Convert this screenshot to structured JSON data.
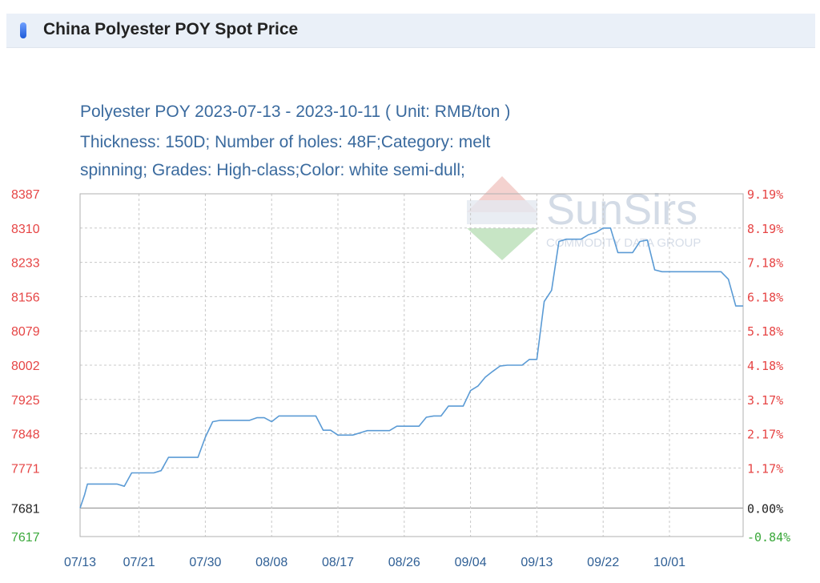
{
  "header": {
    "title": "China Polyester POY Spot Price"
  },
  "description": {
    "line1": "Polyester POY 2023-07-13 - 2023-10-11     ( Unit: RMB/ton )",
    "line2": "Thickness: 150D; Number of holes: 48F;Category: melt",
    "line3": "spinning; Grades: High-class;Color: white semi-dull;"
  },
  "watermark": {
    "brand": "SunSirs",
    "sub": "COMMODITY DATA GROUP"
  },
  "colors": {
    "line": "#5b9bd5",
    "positive": "#e64545",
    "negative": "#3aa83a",
    "base": "#222222",
    "grid": "#c8c8c8"
  },
  "chart_data": {
    "type": "line",
    "title": "Polyester POY 2023-07-13 - 2023-10-11",
    "unit": "RMB/ton",
    "base_value": 7681,
    "ylim": [
      7617,
      8387
    ],
    "y_ticks_left": [
      "8387",
      "8310",
      "8233",
      "8156",
      "8079",
      "8002",
      "7925",
      "7848",
      "7771",
      "7681",
      "7617"
    ],
    "y_tick_values": [
      8387,
      8310,
      8233,
      8156,
      8079,
      8002,
      7925,
      7848,
      7771,
      7681,
      7617
    ],
    "y_ticks_right": [
      "9.19%",
      "8.19%",
      "7.18%",
      "6.18%",
      "5.18%",
      "4.18%",
      "3.17%",
      "2.17%",
      "1.17%",
      "0.00%",
      "-0.84%"
    ],
    "x_ticks": [
      "07/13",
      "07/21",
      "07/30",
      "08/08",
      "08/17",
      "08/26",
      "09/04",
      "09/13",
      "09/22",
      "10/01"
    ],
    "x_tick_days": [
      0,
      8,
      17,
      26,
      35,
      44,
      53,
      62,
      71,
      80
    ],
    "x_range_days": [
      0,
      90
    ],
    "series": [
      {
        "points": [
          [
            0,
            7681
          ],
          [
            0.6,
            7710
          ],
          [
            1,
            7735
          ],
          [
            2,
            7735
          ],
          [
            3,
            7735
          ],
          [
            4,
            7735
          ],
          [
            5,
            7735
          ],
          [
            6,
            7730
          ],
          [
            7,
            7760
          ],
          [
            8,
            7760
          ],
          [
            9,
            7760
          ],
          [
            10,
            7760
          ],
          [
            11,
            7765
          ],
          [
            12,
            7795
          ],
          [
            13,
            7795
          ],
          [
            14,
            7795
          ],
          [
            15,
            7795
          ],
          [
            16,
            7795
          ],
          [
            17,
            7840
          ],
          [
            18,
            7875
          ],
          [
            19,
            7878
          ],
          [
            20,
            7878
          ],
          [
            21,
            7878
          ],
          [
            22,
            7878
          ],
          [
            23,
            7878
          ],
          [
            24,
            7884
          ],
          [
            25,
            7884
          ],
          [
            26,
            7875
          ],
          [
            27,
            7888
          ],
          [
            28,
            7888
          ],
          [
            29,
            7888
          ],
          [
            30,
            7888
          ],
          [
            31,
            7888
          ],
          [
            32,
            7888
          ],
          [
            33,
            7856
          ],
          [
            34,
            7856
          ],
          [
            35,
            7845
          ],
          [
            36,
            7845
          ],
          [
            37,
            7845
          ],
          [
            38,
            7850
          ],
          [
            39,
            7855
          ],
          [
            40,
            7855
          ],
          [
            41,
            7855
          ],
          [
            42,
            7855
          ],
          [
            43,
            7865
          ],
          [
            44,
            7865
          ],
          [
            45,
            7865
          ],
          [
            46,
            7865
          ],
          [
            47,
            7885
          ],
          [
            48,
            7888
          ],
          [
            49,
            7888
          ],
          [
            50,
            7910
          ],
          [
            51,
            7910
          ],
          [
            52,
            7910
          ],
          [
            53,
            7945
          ],
          [
            54,
            7955
          ],
          [
            55,
            7975
          ],
          [
            56,
            7988
          ],
          [
            57,
            8000
          ],
          [
            58,
            8002
          ],
          [
            59,
            8002
          ],
          [
            60,
            8002
          ],
          [
            61,
            8015
          ],
          [
            62,
            8015
          ],
          [
            63,
            8145
          ],
          [
            64,
            8170
          ],
          [
            65,
            8280
          ],
          [
            66,
            8285
          ],
          [
            67,
            8285
          ],
          [
            68,
            8285
          ],
          [
            69,
            8295
          ],
          [
            70,
            8300
          ],
          [
            71,
            8310
          ],
          [
            72,
            8310
          ],
          [
            73,
            8255
          ],
          [
            74,
            8255
          ],
          [
            75,
            8255
          ],
          [
            76,
            8280
          ],
          [
            77,
            8283
          ],
          [
            78,
            8216
          ],
          [
            79,
            8212
          ],
          [
            80,
            8212
          ],
          [
            81,
            8212
          ],
          [
            82,
            8212
          ],
          [
            83,
            8212
          ],
          [
            84,
            8212
          ],
          [
            85,
            8212
          ],
          [
            86,
            8212
          ],
          [
            87,
            8212
          ],
          [
            88,
            8195
          ],
          [
            89,
            8135
          ],
          [
            90,
            8135
          ]
        ]
      }
    ]
  }
}
